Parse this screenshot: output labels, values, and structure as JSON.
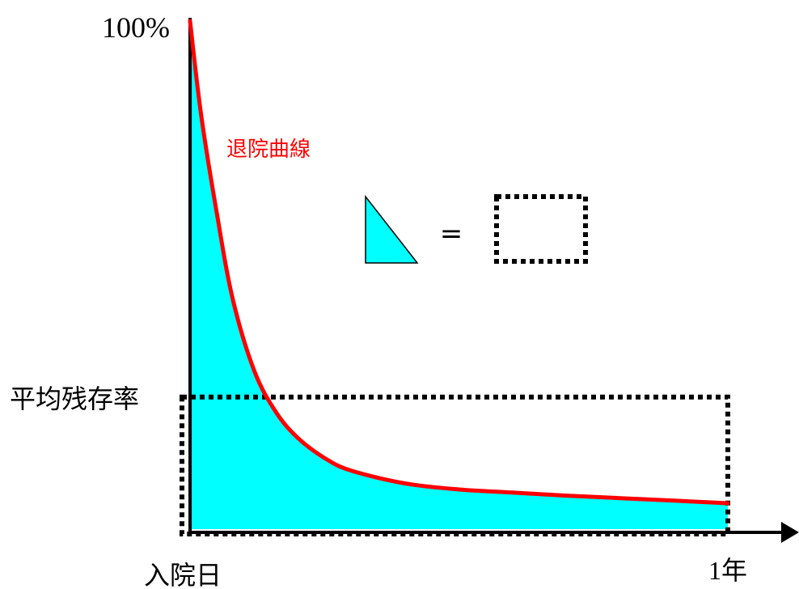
{
  "chart_data": {
    "type": "area",
    "title": "",
    "y_axis": {
      "top_label": "100%",
      "ylim": [
        0,
        100
      ]
    },
    "x_axis": {
      "start_label": "入院日",
      "end_label": "1年",
      "xlim": [
        0,
        1
      ]
    },
    "series": [
      {
        "name": "退院曲線",
        "color": "#ff0000",
        "fill": "#00ffff",
        "x": [
          0,
          0.02,
          0.05,
          0.08,
          0.12,
          0.16,
          0.2,
          0.25,
          0.3,
          0.4,
          0.5,
          0.6,
          0.7,
          0.8,
          0.9,
          1.0
        ],
        "y": [
          100,
          82,
          62,
          45,
          31,
          23,
          18,
          14,
          11.5,
          9,
          7.8,
          7.2,
          6.6,
          6.1,
          5.6,
          5.1
        ]
      }
    ],
    "reference_level": {
      "label": "平均残存率",
      "value": 26,
      "style": "dotted"
    },
    "annotation": {
      "equals_sign": "="
    },
    "colors": {
      "curve": "#ff0000",
      "area": "#00ffff",
      "axis": "#000000"
    }
  }
}
